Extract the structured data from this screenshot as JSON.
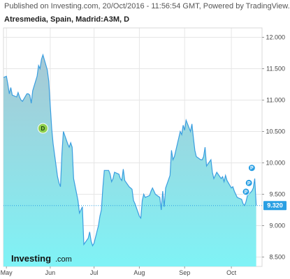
{
  "header": {
    "published": "Published on Investing.com, 20/Oct/2016 - 11:56:54 GMT, Powered by TradingView.",
    "title": "Atresmedia, Spain, Madrid:A3M, D"
  },
  "logo": {
    "text": "Investing",
    "suffix": ".com"
  },
  "colors": {
    "line": "#3a9ee0",
    "fill_top": "#a8c8d4",
    "fill_bottom": "#7ff3f6",
    "marker_dividend": "#8fd14f",
    "marker_p": "#2a9fe3",
    "price_label_bg": "#2a9fe3",
    "grid": "#e6e6e6"
  },
  "chart_data": {
    "type": "area",
    "title": "Atresmedia, Spain, Madrid:A3M, D",
    "x_tick_labels": [
      "May",
      "Jun",
      "Jul",
      "Aug",
      "Sep",
      "Oct"
    ],
    "x_ticks": [
      "2016-05-02",
      "2016-06-01",
      "2016-07-01",
      "2016-08-01",
      "2016-09-01",
      "2016-10-03"
    ],
    "ylim": [
      8.35,
      12.15
    ],
    "y_ticks": [
      8.5,
      9.0,
      9.5,
      10.0,
      10.5,
      11.0,
      11.5,
      12.0
    ],
    "y_tick_labels": [
      "8.500",
      "9.000",
      "9.500",
      "10.000",
      "10.500",
      "11.000",
      "11.500",
      "12.000"
    ],
    "grid": true,
    "last_price": 9.32,
    "last_price_label": "9.320",
    "markers": [
      {
        "label": "D",
        "date": "2016-05-27",
        "value": 10.55
      },
      {
        "label": "P",
        "date": "2016-10-17",
        "value": 9.92
      },
      {
        "label": "P",
        "date": "2016-10-15",
        "value": 9.68
      },
      {
        "label": "P",
        "date": "2016-10-13",
        "value": 9.54
      }
    ],
    "series": [
      {
        "values": [
          [
            "2016-04-29",
            11.35
          ],
          [
            "2016-05-02",
            11.38
          ],
          [
            "2016-05-03",
            11.25
          ],
          [
            "2016-05-04",
            11.1
          ],
          [
            "2016-05-05",
            11.2
          ],
          [
            "2016-05-06",
            11.08
          ],
          [
            "2016-05-09",
            11.05
          ],
          [
            "2016-05-10",
            11.12
          ],
          [
            "2016-05-11",
            11.05
          ],
          [
            "2016-05-12",
            11.0
          ],
          [
            "2016-05-13",
            10.98
          ],
          [
            "2016-05-16",
            11.1
          ],
          [
            "2016-05-17",
            11.1
          ],
          [
            "2016-05-18",
            11.08
          ],
          [
            "2016-05-19",
            10.95
          ],
          [
            "2016-05-20",
            11.15
          ],
          [
            "2016-05-23",
            11.38
          ],
          [
            "2016-05-24",
            11.55
          ],
          [
            "2016-05-25",
            11.5
          ],
          [
            "2016-05-26",
            11.65
          ],
          [
            "2016-05-27",
            11.72
          ],
          [
            "2016-05-30",
            11.48
          ],
          [
            "2016-05-31",
            11.3
          ],
          [
            "2016-06-01",
            10.92
          ],
          [
            "2016-06-02",
            10.55
          ],
          [
            "2016-06-03",
            10.3
          ],
          [
            "2016-06-06",
            9.78
          ],
          [
            "2016-06-07",
            9.68
          ],
          [
            "2016-06-08",
            9.62
          ],
          [
            "2016-06-09",
            10.15
          ],
          [
            "2016-06-10",
            10.5
          ],
          [
            "2016-06-13",
            10.3
          ],
          [
            "2016-06-14",
            10.25
          ],
          [
            "2016-06-15",
            10.32
          ],
          [
            "2016-06-16",
            10.25
          ],
          [
            "2016-06-17",
            9.75
          ],
          [
            "2016-06-20",
            9.4
          ],
          [
            "2016-06-21",
            9.2
          ],
          [
            "2016-06-22",
            9.25
          ],
          [
            "2016-06-23",
            9.3
          ],
          [
            "2016-06-24",
            8.7
          ],
          [
            "2016-06-27",
            8.8
          ],
          [
            "2016-06-28",
            8.9
          ],
          [
            "2016-06-29",
            8.75
          ],
          [
            "2016-06-30",
            8.68
          ],
          [
            "2016-07-01",
            8.72
          ],
          [
            "2016-07-04",
            9.0
          ],
          [
            "2016-07-05",
            9.15
          ],
          [
            "2016-07-06",
            9.25
          ],
          [
            "2016-07-07",
            9.6
          ],
          [
            "2016-07-08",
            9.88
          ],
          [
            "2016-07-11",
            9.88
          ],
          [
            "2016-07-12",
            9.82
          ],
          [
            "2016-07-13",
            9.7
          ],
          [
            "2016-07-14",
            9.75
          ],
          [
            "2016-07-15",
            9.85
          ],
          [
            "2016-07-18",
            9.82
          ],
          [
            "2016-07-19",
            9.75
          ],
          [
            "2016-07-20",
            9.72
          ],
          [
            "2016-07-21",
            9.9
          ],
          [
            "2016-07-22",
            9.72
          ],
          [
            "2016-07-25",
            9.62
          ],
          [
            "2016-07-26",
            9.6
          ],
          [
            "2016-07-27",
            9.58
          ],
          [
            "2016-07-28",
            9.4
          ],
          [
            "2016-07-29",
            9.35
          ],
          [
            "2016-08-01",
            9.15
          ],
          [
            "2016-08-02",
            9.12
          ],
          [
            "2016-08-03",
            9.4
          ],
          [
            "2016-08-04",
            9.5
          ],
          [
            "2016-08-05",
            9.45
          ],
          [
            "2016-08-08",
            9.48
          ],
          [
            "2016-08-09",
            9.55
          ],
          [
            "2016-08-10",
            9.6
          ],
          [
            "2016-08-11",
            9.55
          ],
          [
            "2016-08-12",
            9.5
          ],
          [
            "2016-08-15",
            9.45
          ],
          [
            "2016-08-16",
            9.25
          ],
          [
            "2016-08-17",
            9.55
          ],
          [
            "2016-08-18",
            9.3
          ],
          [
            "2016-08-19",
            9.6
          ],
          [
            "2016-08-22",
            9.8
          ],
          [
            "2016-08-23",
            10.2
          ],
          [
            "2016-08-24",
            10.05
          ],
          [
            "2016-08-25",
            10.1
          ],
          [
            "2016-08-26",
            10.2
          ],
          [
            "2016-08-29",
            10.5
          ],
          [
            "2016-08-30",
            10.45
          ],
          [
            "2016-08-31",
            10.6
          ],
          [
            "2016-09-01",
            10.52
          ],
          [
            "2016-09-02",
            10.68
          ],
          [
            "2016-09-05",
            10.5
          ],
          [
            "2016-09-06",
            10.62
          ],
          [
            "2016-09-07",
            10.4
          ],
          [
            "2016-09-08",
            10.2
          ],
          [
            "2016-09-09",
            10.1
          ],
          [
            "2016-09-12",
            10.05
          ],
          [
            "2016-09-13",
            10.05
          ],
          [
            "2016-09-14",
            10.1
          ],
          [
            "2016-09-15",
            10.25
          ],
          [
            "2016-09-16",
            9.95
          ],
          [
            "2016-09-19",
            10.05
          ],
          [
            "2016-09-20",
            9.85
          ],
          [
            "2016-09-21",
            9.75
          ],
          [
            "2016-09-22",
            9.8
          ],
          [
            "2016-09-23",
            9.85
          ],
          [
            "2016-09-26",
            9.75
          ],
          [
            "2016-09-27",
            9.78
          ],
          [
            "2016-09-28",
            9.7
          ],
          [
            "2016-09-29",
            9.8
          ],
          [
            "2016-09-30",
            9.72
          ],
          [
            "2016-10-03",
            9.6
          ],
          [
            "2016-10-04",
            9.62
          ],
          [
            "2016-10-05",
            9.55
          ],
          [
            "2016-10-06",
            9.5
          ],
          [
            "2016-10-07",
            9.45
          ],
          [
            "2016-10-10",
            9.42
          ],
          [
            "2016-10-11",
            9.35
          ],
          [
            "2016-10-12",
            9.32
          ],
          [
            "2016-10-13",
            9.38
          ],
          [
            "2016-10-14",
            9.48
          ],
          [
            "2016-10-17",
            9.55
          ],
          [
            "2016-10-18",
            9.6
          ],
          [
            "2016-10-19",
            9.75
          ],
          [
            "2016-10-20",
            9.32
          ]
        ]
      }
    ]
  }
}
